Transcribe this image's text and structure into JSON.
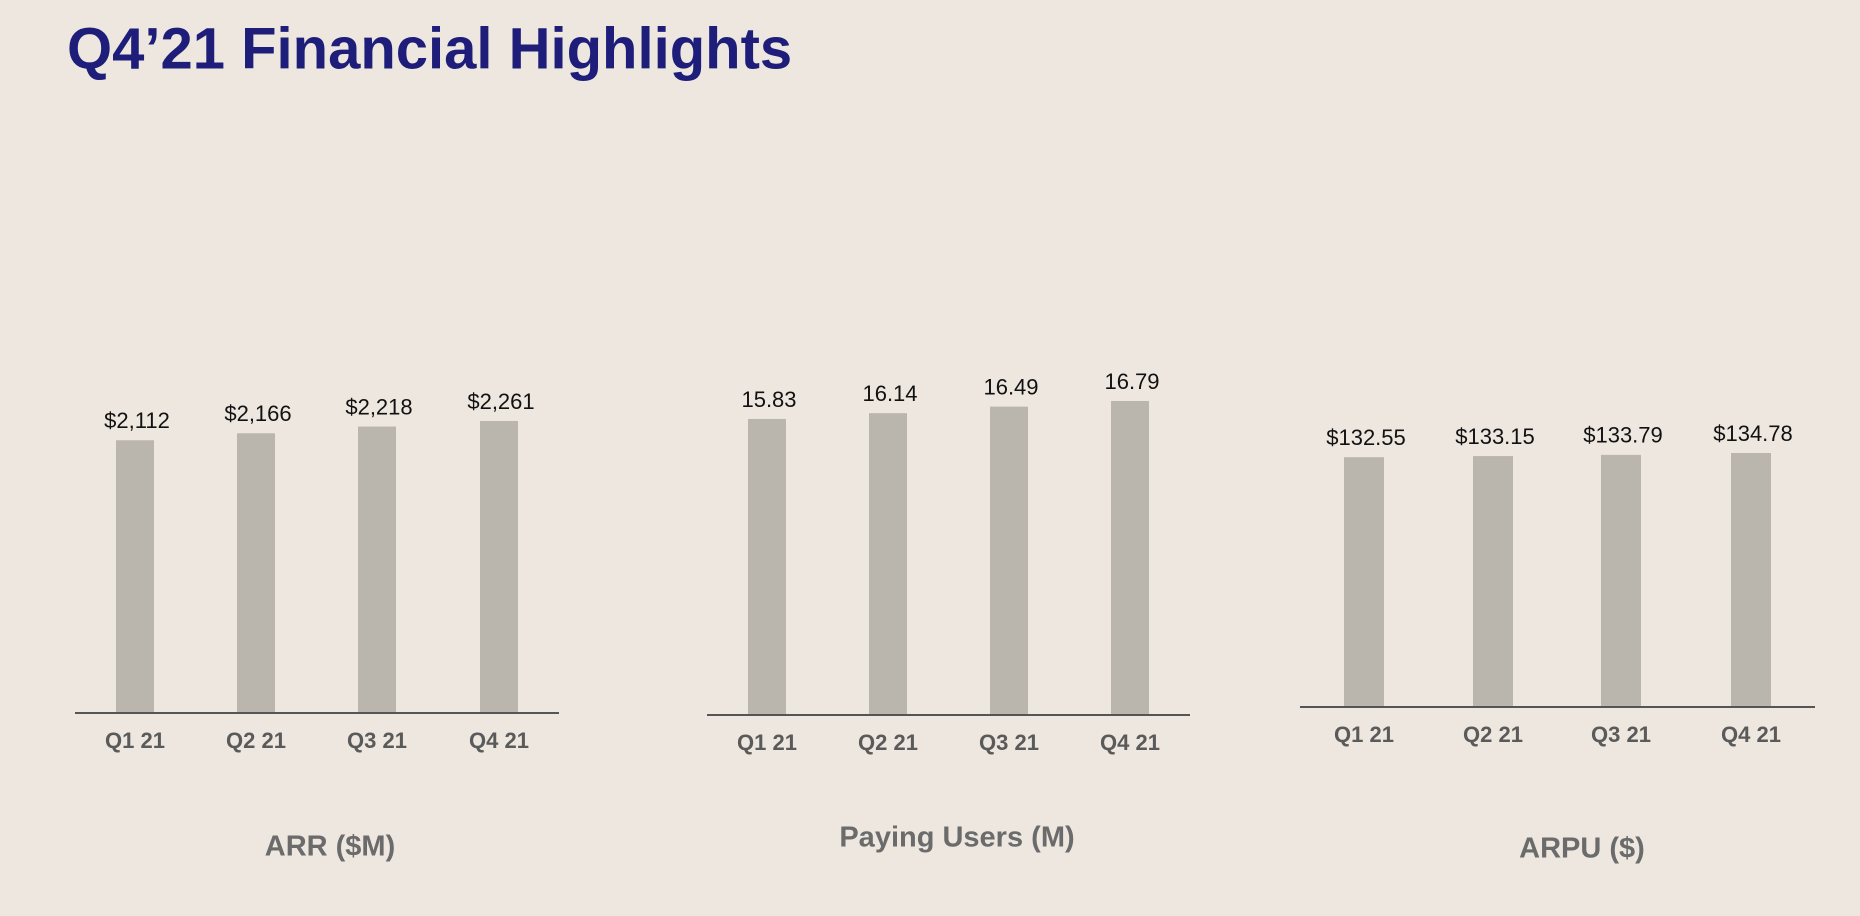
{
  "page_title": "Q4’21 Financial Highlights",
  "chart_data": [
    {
      "type": "bar",
      "title": "ARR ($M)",
      "categories": [
        "Q1 21",
        "Q2 21",
        "Q3 21",
        "Q4 21"
      ],
      "values": [
        2112,
        2166,
        2218,
        2261
      ],
      "value_labels": [
        "$2,112",
        "$2,166",
        "$2,218",
        "$2,261"
      ],
      "color": "#bab6ad"
    },
    {
      "type": "bar",
      "title": "Paying Users (M)",
      "categories": [
        "Q1 21",
        "Q2 21",
        "Q3 21",
        "Q4 21"
      ],
      "values": [
        15.83,
        16.14,
        16.49,
        16.79
      ],
      "color": "#bab6ad"
    },
    {
      "type": "bar",
      "title": "ARPU ($)",
      "categories": [
        "Q1 21",
        "Q2 21",
        "Q3 21",
        "Q4 21"
      ],
      "values": [
        132.55,
        133.15,
        133.79,
        134.78
      ],
      "value_labels": [
        "$132.55",
        "$133.15",
        "$133.79",
        "$134.78"
      ],
      "color": "#bab6ad"
    }
  ]
}
